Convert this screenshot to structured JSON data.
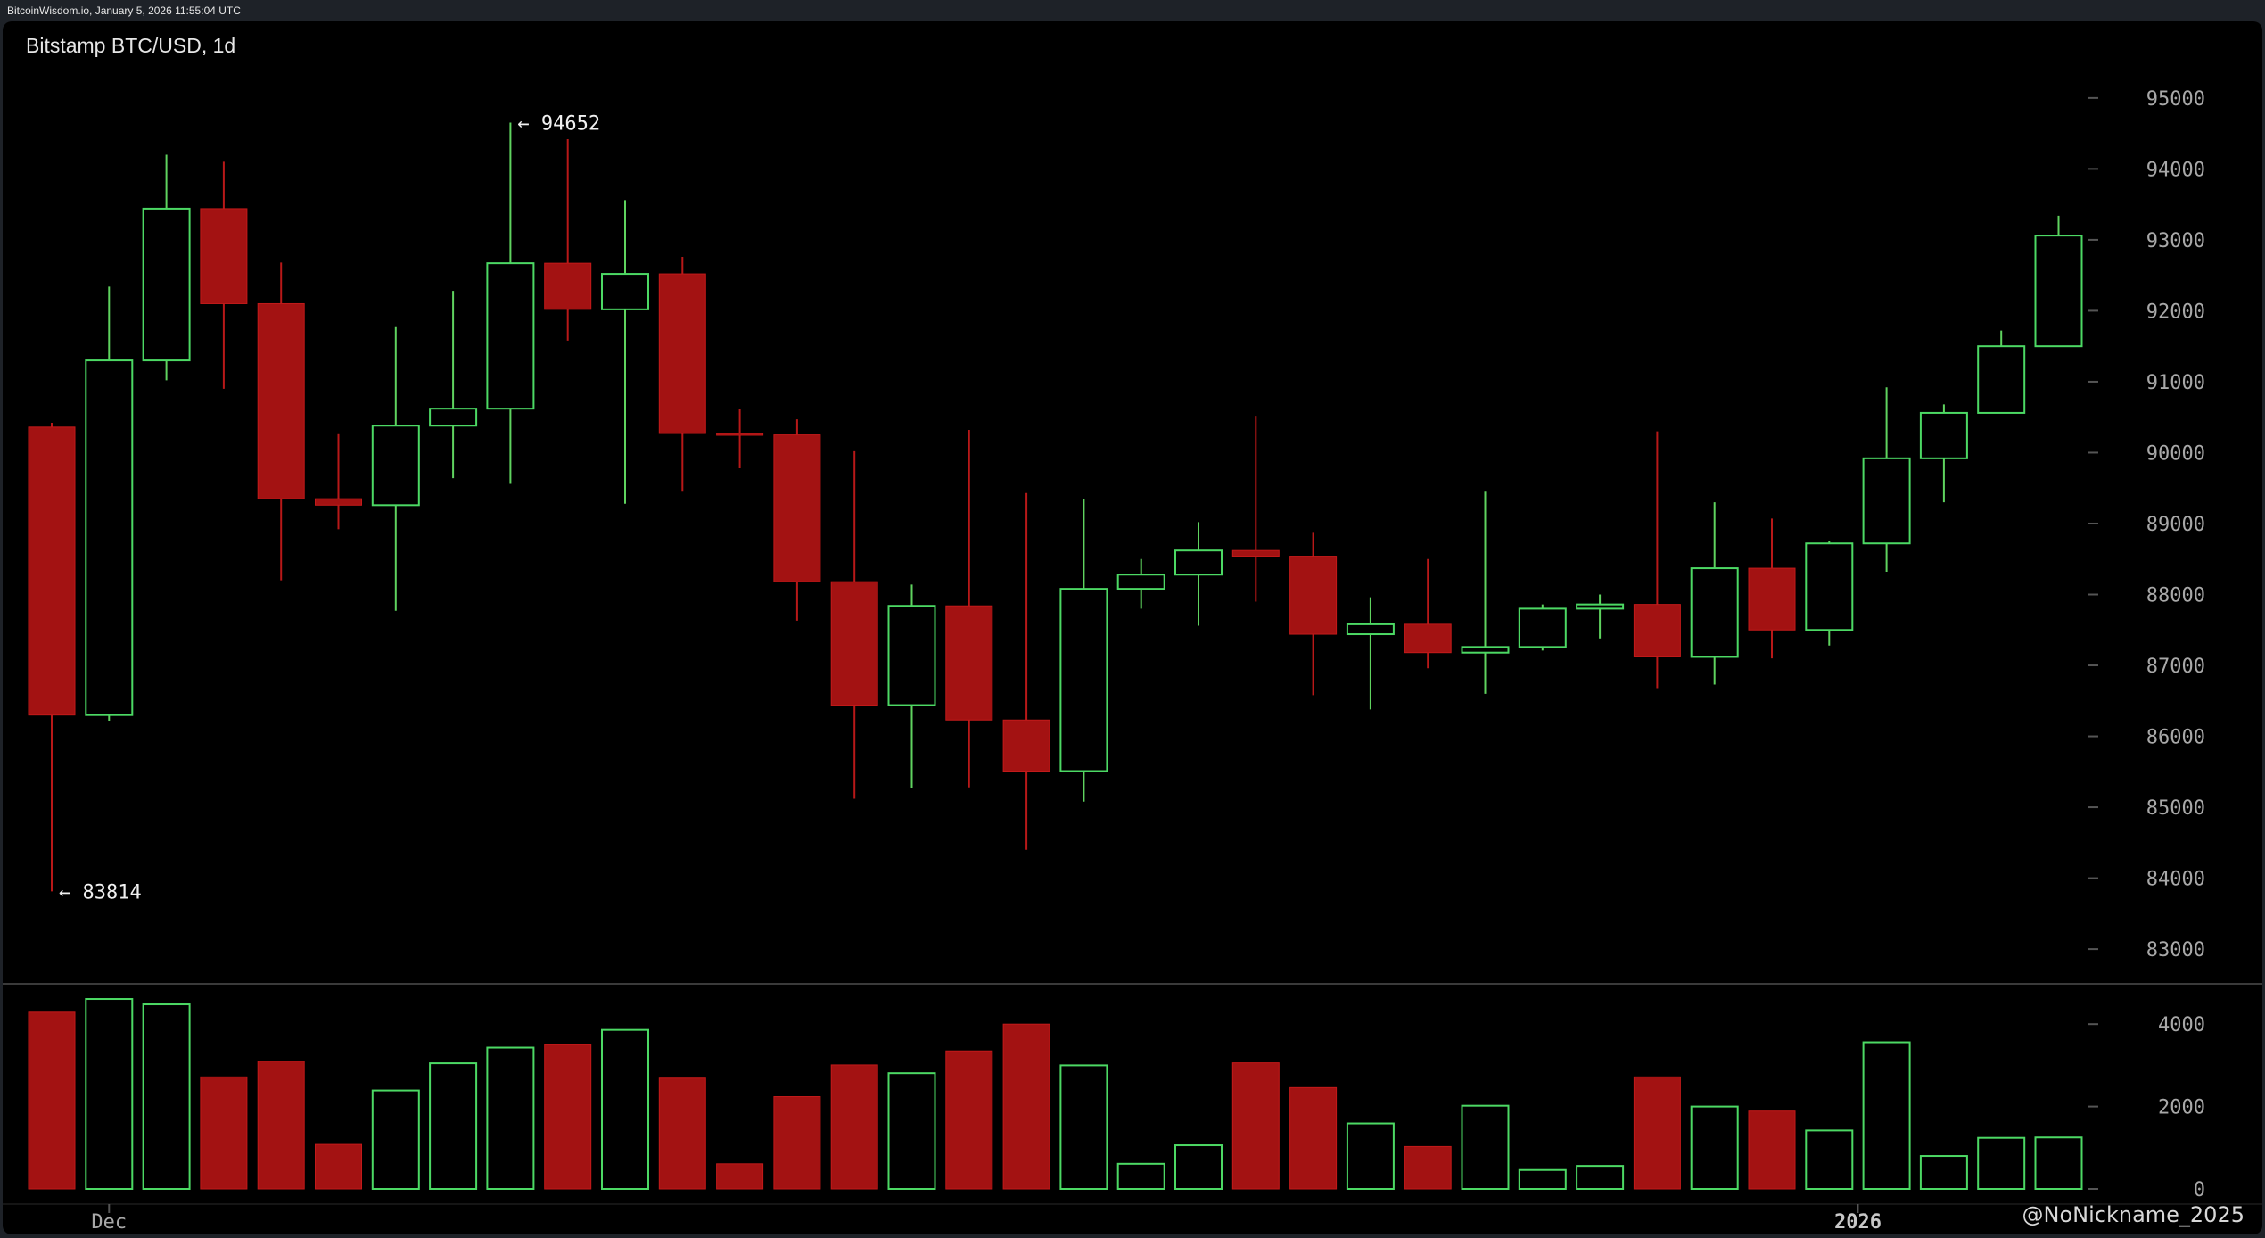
{
  "header": {
    "source_line": "BitcoinWisdom.io, January 5, 2026 11:55:04 UTC"
  },
  "chart_title": "Bitstamp BTC/USD, 1d",
  "watermark": "@NoNickname_2025",
  "colors": {
    "up": "#4cd964",
    "down": "#a31212",
    "background": "#000000",
    "axis_text": "#a8a8a8"
  },
  "chart_data": [
    {
      "type": "candlestick",
      "title": "Bitstamp BTC/USD, 1d",
      "y_ticks": [
        83000,
        84000,
        85000,
        86000,
        87000,
        88000,
        89000,
        90000,
        91000,
        92000,
        93000,
        94000,
        95000
      ],
      "ylim": [
        82600,
        95600
      ],
      "x_labels": [
        {
          "index": 1,
          "text": "Dec"
        },
        {
          "index": 31.5,
          "text": "2026"
        }
      ],
      "annotations": [
        {
          "text": "← 94652",
          "index": 8,
          "value": 94652
        },
        {
          "text": "← 83814",
          "index": 0,
          "value": 83814
        }
      ],
      "candles": [
        {
          "open": 90360,
          "high": 90420,
          "low": 83814,
          "close": 86300
        },
        {
          "open": 86300,
          "high": 92340,
          "low": 86220,
          "close": 91300
        },
        {
          "open": 91300,
          "high": 94200,
          "low": 91020,
          "close": 93440
        },
        {
          "open": 93440,
          "high": 94100,
          "low": 90900,
          "close": 92100
        },
        {
          "open": 92100,
          "high": 92680,
          "low": 88200,
          "close": 89350
        },
        {
          "open": 89350,
          "high": 90260,
          "low": 88920,
          "close": 89260
        },
        {
          "open": 89260,
          "high": 91770,
          "low": 87770,
          "close": 90380
        },
        {
          "open": 90380,
          "high": 92280,
          "low": 89640,
          "close": 90620
        },
        {
          "open": 90620,
          "high": 94652,
          "low": 89560,
          "close": 92670
        },
        {
          "open": 92670,
          "high": 94420,
          "low": 91580,
          "close": 92020
        },
        {
          "open": 92020,
          "high": 93560,
          "low": 89280,
          "close": 92520
        },
        {
          "open": 92520,
          "high": 92760,
          "low": 89450,
          "close": 90270
        },
        {
          "open": 90270,
          "high": 90620,
          "low": 89780,
          "close": 90250
        },
        {
          "open": 90250,
          "high": 90470,
          "low": 87630,
          "close": 88180
        },
        {
          "open": 88180,
          "high": 90020,
          "low": 85120,
          "close": 86440
        },
        {
          "open": 86440,
          "high": 88140,
          "low": 85270,
          "close": 87840
        },
        {
          "open": 87840,
          "high": 90320,
          "low": 85280,
          "close": 86230
        },
        {
          "open": 86230,
          "high": 89430,
          "low": 84400,
          "close": 85510
        },
        {
          "open": 85510,
          "high": 89350,
          "low": 85080,
          "close": 88080
        },
        {
          "open": 88080,
          "high": 88500,
          "low": 87800,
          "close": 88280
        },
        {
          "open": 88280,
          "high": 89020,
          "low": 87560,
          "close": 88620
        },
        {
          "open": 88620,
          "high": 90520,
          "low": 87900,
          "close": 88540
        },
        {
          "open": 88540,
          "high": 88870,
          "low": 86580,
          "close": 87440
        },
        {
          "open": 87440,
          "high": 87960,
          "low": 86380,
          "close": 87580
        },
        {
          "open": 87580,
          "high": 88500,
          "low": 86960,
          "close": 87180
        },
        {
          "open": 87180,
          "high": 89450,
          "low": 86600,
          "close": 87260
        },
        {
          "open": 87260,
          "high": 87860,
          "low": 87210,
          "close": 87800
        },
        {
          "open": 87800,
          "high": 88000,
          "low": 87380,
          "close": 87860
        },
        {
          "open": 87860,
          "high": 90300,
          "low": 86680,
          "close": 87120
        },
        {
          "open": 87120,
          "high": 89300,
          "low": 86730,
          "close": 88370
        },
        {
          "open": 88370,
          "high": 89070,
          "low": 87100,
          "close": 87500
        },
        {
          "open": 87500,
          "high": 88750,
          "low": 87280,
          "close": 88720
        },
        {
          "open": 88720,
          "high": 90920,
          "low": 88320,
          "close": 89920
        },
        {
          "open": 89920,
          "high": 90680,
          "low": 89300,
          "close": 90560
        },
        {
          "open": 90560,
          "high": 91720,
          "low": 90560,
          "close": 91500
        },
        {
          "open": 91500,
          "high": 93340,
          "low": 91500,
          "close": 93060
        }
      ]
    },
    {
      "type": "bar",
      "title": "",
      "y_ticks": [
        0,
        2000,
        4000
      ],
      "ylim": [
        0,
        4900
      ],
      "values": [
        4290,
        4610,
        4480,
        2720,
        3100,
        1080,
        2390,
        3050,
        3430,
        3500,
        3860,
        2690,
        610,
        2240,
        3010,
        2810,
        3350,
        4000,
        3000,
        610,
        1060,
        3060,
        2460,
        1590,
        1030,
        2020,
        460,
        560,
        2720,
        2000,
        1890,
        1420,
        3560,
        800,
        1240,
        1250
      ]
    }
  ]
}
